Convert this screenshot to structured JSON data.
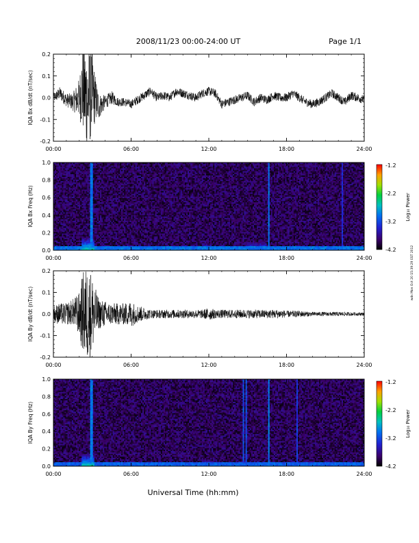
{
  "header": {
    "title": "2008/11/23  00:00-24:00 UT",
    "page": "Page 1/1"
  },
  "xaxis": {
    "label": "Universal Time (hh:mm)",
    "ticks": [
      "00:00",
      "06:00",
      "12:00",
      "18:00",
      "24:00"
    ]
  },
  "side_note": "wds Mon Oct 20 15:39:29 EST 2012",
  "colorbar": {
    "label": "Log₁₀ Power",
    "ticks": [
      "-1.2",
      "-2.2",
      "-3.2",
      "-4.2"
    ]
  },
  "chart_data": [
    {
      "type": "line",
      "name": "bx-dbdt",
      "ylabel": "IQA Bx dB/dt (nT/sec)",
      "yticks": [
        "0.2",
        "0.1",
        "0.0",
        "-0.1",
        "-0.2"
      ],
      "xlim": [
        0,
        24
      ],
      "ylim": [
        -0.2,
        0.2
      ],
      "x_hours": [
        0,
        0.5,
        1,
        1.5,
        2,
        2.3,
        2.6,
        2.9,
        3.2,
        3.5,
        4,
        4.5,
        5,
        5.5,
        6,
        6.5,
        7,
        7.5,
        8,
        8.5,
        9,
        9.5,
        10,
        10.5,
        11,
        11.5,
        12,
        12.5,
        13,
        13.5,
        14,
        14.5,
        15,
        15.5,
        16,
        16.5,
        17,
        17.5,
        18,
        18.5,
        19,
        19.5,
        20,
        20.5,
        21,
        21.5,
        22,
        22.5,
        23,
        23.5,
        24
      ],
      "baseline": [
        0.0,
        0.02,
        -0.01,
        -0.02,
        0.0,
        0.05,
        -0.02,
        0.03,
        0.0,
        -0.04,
        -0.02,
        0.0,
        -0.02,
        -0.02,
        -0.03,
        -0.01,
        0.01,
        0.03,
        0.0,
        0.01,
        0.0,
        0.03,
        0.02,
        0.01,
        0.0,
        0.02,
        0.03,
        0.02,
        -0.03,
        -0.02,
        -0.01,
        0.0,
        0.01,
        -0.02,
        0.0,
        -0.01,
        0.01,
        0.0,
        0.0,
        0.02,
        0.0,
        -0.02,
        -0.03,
        -0.02,
        0.0,
        0.02,
        0.0,
        -0.02,
        0.01,
        0.0,
        -0.01
      ],
      "amplitude": [
        0.02,
        0.03,
        0.03,
        0.04,
        0.09,
        0.22,
        0.25,
        0.22,
        0.12,
        0.06,
        0.03,
        0.03,
        0.02,
        0.02,
        0.02,
        0.02,
        0.02,
        0.02,
        0.02,
        0.02,
        0.02,
        0.02,
        0.02,
        0.02,
        0.02,
        0.02,
        0.02,
        0.02,
        0.02,
        0.02,
        0.02,
        0.02,
        0.02,
        0.02,
        0.02,
        0.02,
        0.02,
        0.02,
        0.02,
        0.02,
        0.02,
        0.02,
        0.02,
        0.02,
        0.02,
        0.02,
        0.02,
        0.02,
        0.02,
        0.02,
        0.02
      ]
    },
    {
      "type": "heatmap",
      "name": "bx-spectrogram",
      "ylabel": "IQA Bx Freq (Hz)",
      "yticks": [
        "1.0",
        "0.8",
        "0.6",
        "0.4",
        "0.2",
        "0.0"
      ],
      "xlim": [
        0,
        24
      ],
      "ylim": [
        0,
        1.0
      ],
      "zlim": [
        -4.2,
        -1.2
      ],
      "background_log_power": -3.9,
      "low_freq_band": {
        "top_hz": 0.05,
        "log_power": -3.0
      },
      "bursts": [
        {
          "start_h": 2.2,
          "end_h": 3.2,
          "top_hz": 0.15,
          "log_power": -2.5
        },
        {
          "start_h": 11.5,
          "end_h": 12.2,
          "top_hz": 0.08,
          "log_power": -3.1
        },
        {
          "start_h": 15.0,
          "end_h": 16.5,
          "top_hz": 0.1,
          "log_power": -3.1
        }
      ],
      "vertical_lines": [
        {
          "hour": 2.95,
          "log_power": -3.0
        },
        {
          "hour": 16.6,
          "log_power": -3.0
        },
        {
          "hour": 22.3,
          "log_power": -3.4
        }
      ]
    },
    {
      "type": "line",
      "name": "by-dbdt",
      "ylabel": "IQA By dB/dt (nT/sec)",
      "yticks": [
        "0.2",
        "0.1",
        "0.0",
        "-0.1",
        "-0.2"
      ],
      "xlim": [
        0,
        24
      ],
      "ylim": [
        -0.2,
        0.2
      ],
      "x_hours": [
        0,
        0.5,
        1,
        1.5,
        2,
        2.3,
        2.6,
        2.9,
        3.2,
        3.5,
        4,
        4.5,
        5,
        5.5,
        6,
        6.5,
        7,
        7.5,
        8,
        8.5,
        9,
        9.5,
        10,
        10.5,
        11,
        11.5,
        12,
        12.5,
        13,
        13.5,
        14,
        14.5,
        15,
        15.5,
        16,
        16.5,
        17,
        17.5,
        18,
        18.5,
        19,
        19.5,
        20,
        20.5,
        21,
        21.5,
        22,
        22.5,
        23,
        23.5,
        24
      ],
      "baseline": [
        0.0,
        0.0,
        0.0,
        0.01,
        0.0,
        0.0,
        0.0,
        0.0,
        0.0,
        0.0,
        0.0,
        0.0,
        0.0,
        0.0,
        0.0,
        0.0,
        0.0,
        0.0,
        0.0,
        0.0,
        0.0,
        0.0,
        0.0,
        0.0,
        0.0,
        0.0,
        0.0,
        0.0,
        0.0,
        0.0,
        0.0,
        0.0,
        0.0,
        0.0,
        0.0,
        0.0,
        0.0,
        0.0,
        0.0,
        0.0,
        0.0,
        0.0,
        0.0,
        0.0,
        0.0,
        0.0,
        0.0,
        0.0,
        0.0,
        0.0,
        0.0
      ],
      "amplitude": [
        0.04,
        0.05,
        0.05,
        0.06,
        0.1,
        0.2,
        0.22,
        0.2,
        0.13,
        0.07,
        0.06,
        0.05,
        0.05,
        0.05,
        0.06,
        0.04,
        0.03,
        0.02,
        0.02,
        0.02,
        0.02,
        0.02,
        0.02,
        0.02,
        0.02,
        0.02,
        0.03,
        0.02,
        0.02,
        0.02,
        0.02,
        0.02,
        0.02,
        0.02,
        0.02,
        0.02,
        0.02,
        0.02,
        0.015,
        0.015,
        0.015,
        0.012,
        0.01,
        0.01,
        0.01,
        0.01,
        0.01,
        0.01,
        0.008,
        0.008,
        0.008
      ]
    },
    {
      "type": "heatmap",
      "name": "by-spectrogram",
      "ylabel": "IQA By Freq (Hz)",
      "yticks": [
        "1.0",
        "0.8",
        "0.6",
        "0.4",
        "0.2",
        "0.0"
      ],
      "xlim": [
        0,
        24
      ],
      "ylim": [
        0,
        1.0
      ],
      "zlim": [
        -4.2,
        -1.2
      ],
      "background_log_power": -3.9,
      "low_freq_band": {
        "top_hz": 0.05,
        "log_power": -3.1
      },
      "bursts": [
        {
          "start_h": 2.2,
          "end_h": 3.2,
          "top_hz": 0.15,
          "log_power": -2.5
        },
        {
          "start_h": 11.5,
          "end_h": 12.2,
          "top_hz": 0.08,
          "log_power": -3.1
        }
      ],
      "vertical_lines": [
        {
          "hour": 2.95,
          "log_power": -3.0
        },
        {
          "hour": 14.7,
          "log_power": -3.2
        },
        {
          "hour": 14.9,
          "log_power": -3.2
        },
        {
          "hour": 16.6,
          "log_power": -3.0
        },
        {
          "hour": 18.8,
          "log_power": -3.3
        }
      ]
    }
  ]
}
